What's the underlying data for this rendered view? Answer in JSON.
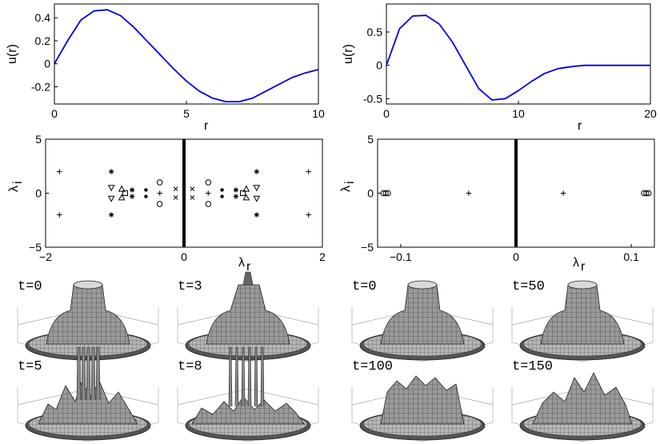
{
  "chart_data": [
    {
      "type": "line",
      "xlabel": "r",
      "ylabel": "u(r)",
      "xlim": [
        0,
        10
      ],
      "ylim": [
        -0.35,
        0.52
      ],
      "xticks": [
        "0",
        "5",
        "10"
      ],
      "yticks": [
        "-0.2",
        "0",
        "0.2",
        "0.4"
      ],
      "series": [
        {
          "color": "#0000dd",
          "x": [
            0,
            0.5,
            1,
            1.5,
            2,
            2.5,
            3,
            3.5,
            4,
            4.5,
            5,
            5.5,
            6,
            6.5,
            7,
            7.5,
            8,
            8.5,
            9,
            9.5,
            10
          ],
          "y": [
            0,
            0.2,
            0.38,
            0.46,
            0.47,
            0.42,
            0.32,
            0.2,
            0.08,
            -0.04,
            -0.15,
            -0.24,
            -0.3,
            -0.33,
            -0.33,
            -0.3,
            -0.24,
            -0.18,
            -0.12,
            -0.08,
            -0.05
          ]
        }
      ]
    },
    {
      "type": "line",
      "xlabel": "r",
      "ylabel": "u(r)",
      "xlim": [
        0,
        20
      ],
      "ylim": [
        -0.58,
        0.92
      ],
      "xticks": [
        "0",
        "10",
        "20"
      ],
      "yticks": [
        "-0.5",
        "0",
        "0.5"
      ],
      "series": [
        {
          "color": "#0000dd",
          "x": [
            0,
            1,
            2,
            3,
            4,
            5,
            6,
            7,
            8,
            9,
            10,
            11,
            12,
            13,
            14,
            15,
            16,
            17,
            18,
            19,
            20
          ],
          "y": [
            0,
            0.55,
            0.74,
            0.75,
            0.62,
            0.35,
            0.0,
            -0.35,
            -0.52,
            -0.5,
            -0.38,
            -0.24,
            -0.12,
            -0.05,
            -0.02,
            0,
            0,
            0,
            0,
            0,
            0
          ]
        }
      ]
    },
    {
      "type": "scatter",
      "xlabel": "λr",
      "ylabel": "λi",
      "xlim": [
        -2,
        2
      ],
      "ylim": [
        -5,
        5
      ],
      "xticks": [
        "−2",
        "0",
        "2"
      ],
      "yticks": [
        "−5",
        "0",
        "5"
      ],
      "continuous_spectrum": "imaginary axis",
      "points": [
        {
          "x": 1.8,
          "y": 2,
          "m": "+"
        },
        {
          "x": 1.8,
          "y": -2,
          "m": "+"
        },
        {
          "x": -1.8,
          "y": 2,
          "m": "+"
        },
        {
          "x": -1.8,
          "y": -2,
          "m": "+"
        },
        {
          "x": 1.05,
          "y": 2,
          "m": "*"
        },
        {
          "x": 1.05,
          "y": -2,
          "m": "*"
        },
        {
          "x": -1.05,
          "y": 2,
          "m": "*"
        },
        {
          "x": -1.05,
          "y": -2,
          "m": "*"
        },
        {
          "x": 1.05,
          "y": 0.5,
          "m": "v"
        },
        {
          "x": 1.05,
          "y": -0.5,
          "m": "v"
        },
        {
          "x": -1.05,
          "y": 0.5,
          "m": "v"
        },
        {
          "x": -1.05,
          "y": -0.5,
          "m": "v"
        },
        {
          "x": 0.9,
          "y": 0.4,
          "m": "^"
        },
        {
          "x": 0.9,
          "y": -0.4,
          "m": "^"
        },
        {
          "x": -0.9,
          "y": 0.4,
          "m": "^"
        },
        {
          "x": -0.9,
          "y": -0.4,
          "m": "^"
        },
        {
          "x": 0.85,
          "y": 0.0,
          "m": "s"
        },
        {
          "x": -0.85,
          "y": 0.0,
          "m": "s"
        },
        {
          "x": 0.75,
          "y": 0.3,
          "m": "*"
        },
        {
          "x": 0.75,
          "y": -0.3,
          "m": "*"
        },
        {
          "x": -0.75,
          "y": 0.3,
          "m": "*"
        },
        {
          "x": -0.75,
          "y": -0.3,
          "m": "*"
        },
        {
          "x": 0.55,
          "y": 0.3,
          "m": "."
        },
        {
          "x": 0.55,
          "y": -0.3,
          "m": "."
        },
        {
          "x": -0.55,
          "y": 0.3,
          "m": "."
        },
        {
          "x": -0.55,
          "y": -0.3,
          "m": "."
        },
        {
          "x": 0.35,
          "y": 1.0,
          "m": "o"
        },
        {
          "x": 0.35,
          "y": -1.0,
          "m": "o"
        },
        {
          "x": -0.35,
          "y": 1.0,
          "m": "o"
        },
        {
          "x": -0.35,
          "y": -1.0,
          "m": "o"
        },
        {
          "x": 0.35,
          "y": 0.0,
          "m": "+"
        },
        {
          "x": -0.35,
          "y": 0.0,
          "m": "+"
        },
        {
          "x": 0.12,
          "y": 0.4,
          "m": "x"
        },
        {
          "x": 0.12,
          "y": -0.4,
          "m": "x"
        },
        {
          "x": -0.12,
          "y": 0.4,
          "m": "x"
        },
        {
          "x": -0.12,
          "y": -0.4,
          "m": "x"
        }
      ]
    },
    {
      "type": "scatter",
      "xlabel": "λr",
      "ylabel": "λi",
      "xlim": [
        -0.12,
        0.12
      ],
      "ylim": [
        -5,
        5
      ],
      "xticks": [
        "−0.1",
        "0",
        "0.1"
      ],
      "yticks": [
        "−5",
        "0",
        "5"
      ],
      "continuous_spectrum": "imaginary axis",
      "points": [
        {
          "x": -0.115,
          "y": 0,
          "m": "o"
        },
        {
          "x": -0.113,
          "y": 0,
          "m": "o"
        },
        {
          "x": -0.111,
          "y": 0,
          "m": "o"
        },
        {
          "x": 0.111,
          "y": 0,
          "m": "o"
        },
        {
          "x": 0.113,
          "y": 0,
          "m": "o"
        },
        {
          "x": 0.115,
          "y": 0,
          "m": "o"
        },
        {
          "x": -0.041,
          "y": 0,
          "m": "+"
        },
        {
          "x": 0.041,
          "y": 0,
          "m": "+"
        }
      ]
    }
  ],
  "snapshots": {
    "left": [
      "t=0",
      "t=3",
      "t=5",
      "t=8"
    ],
    "right": [
      "t=0",
      "t=50",
      "t=100",
      "t=150"
    ]
  }
}
